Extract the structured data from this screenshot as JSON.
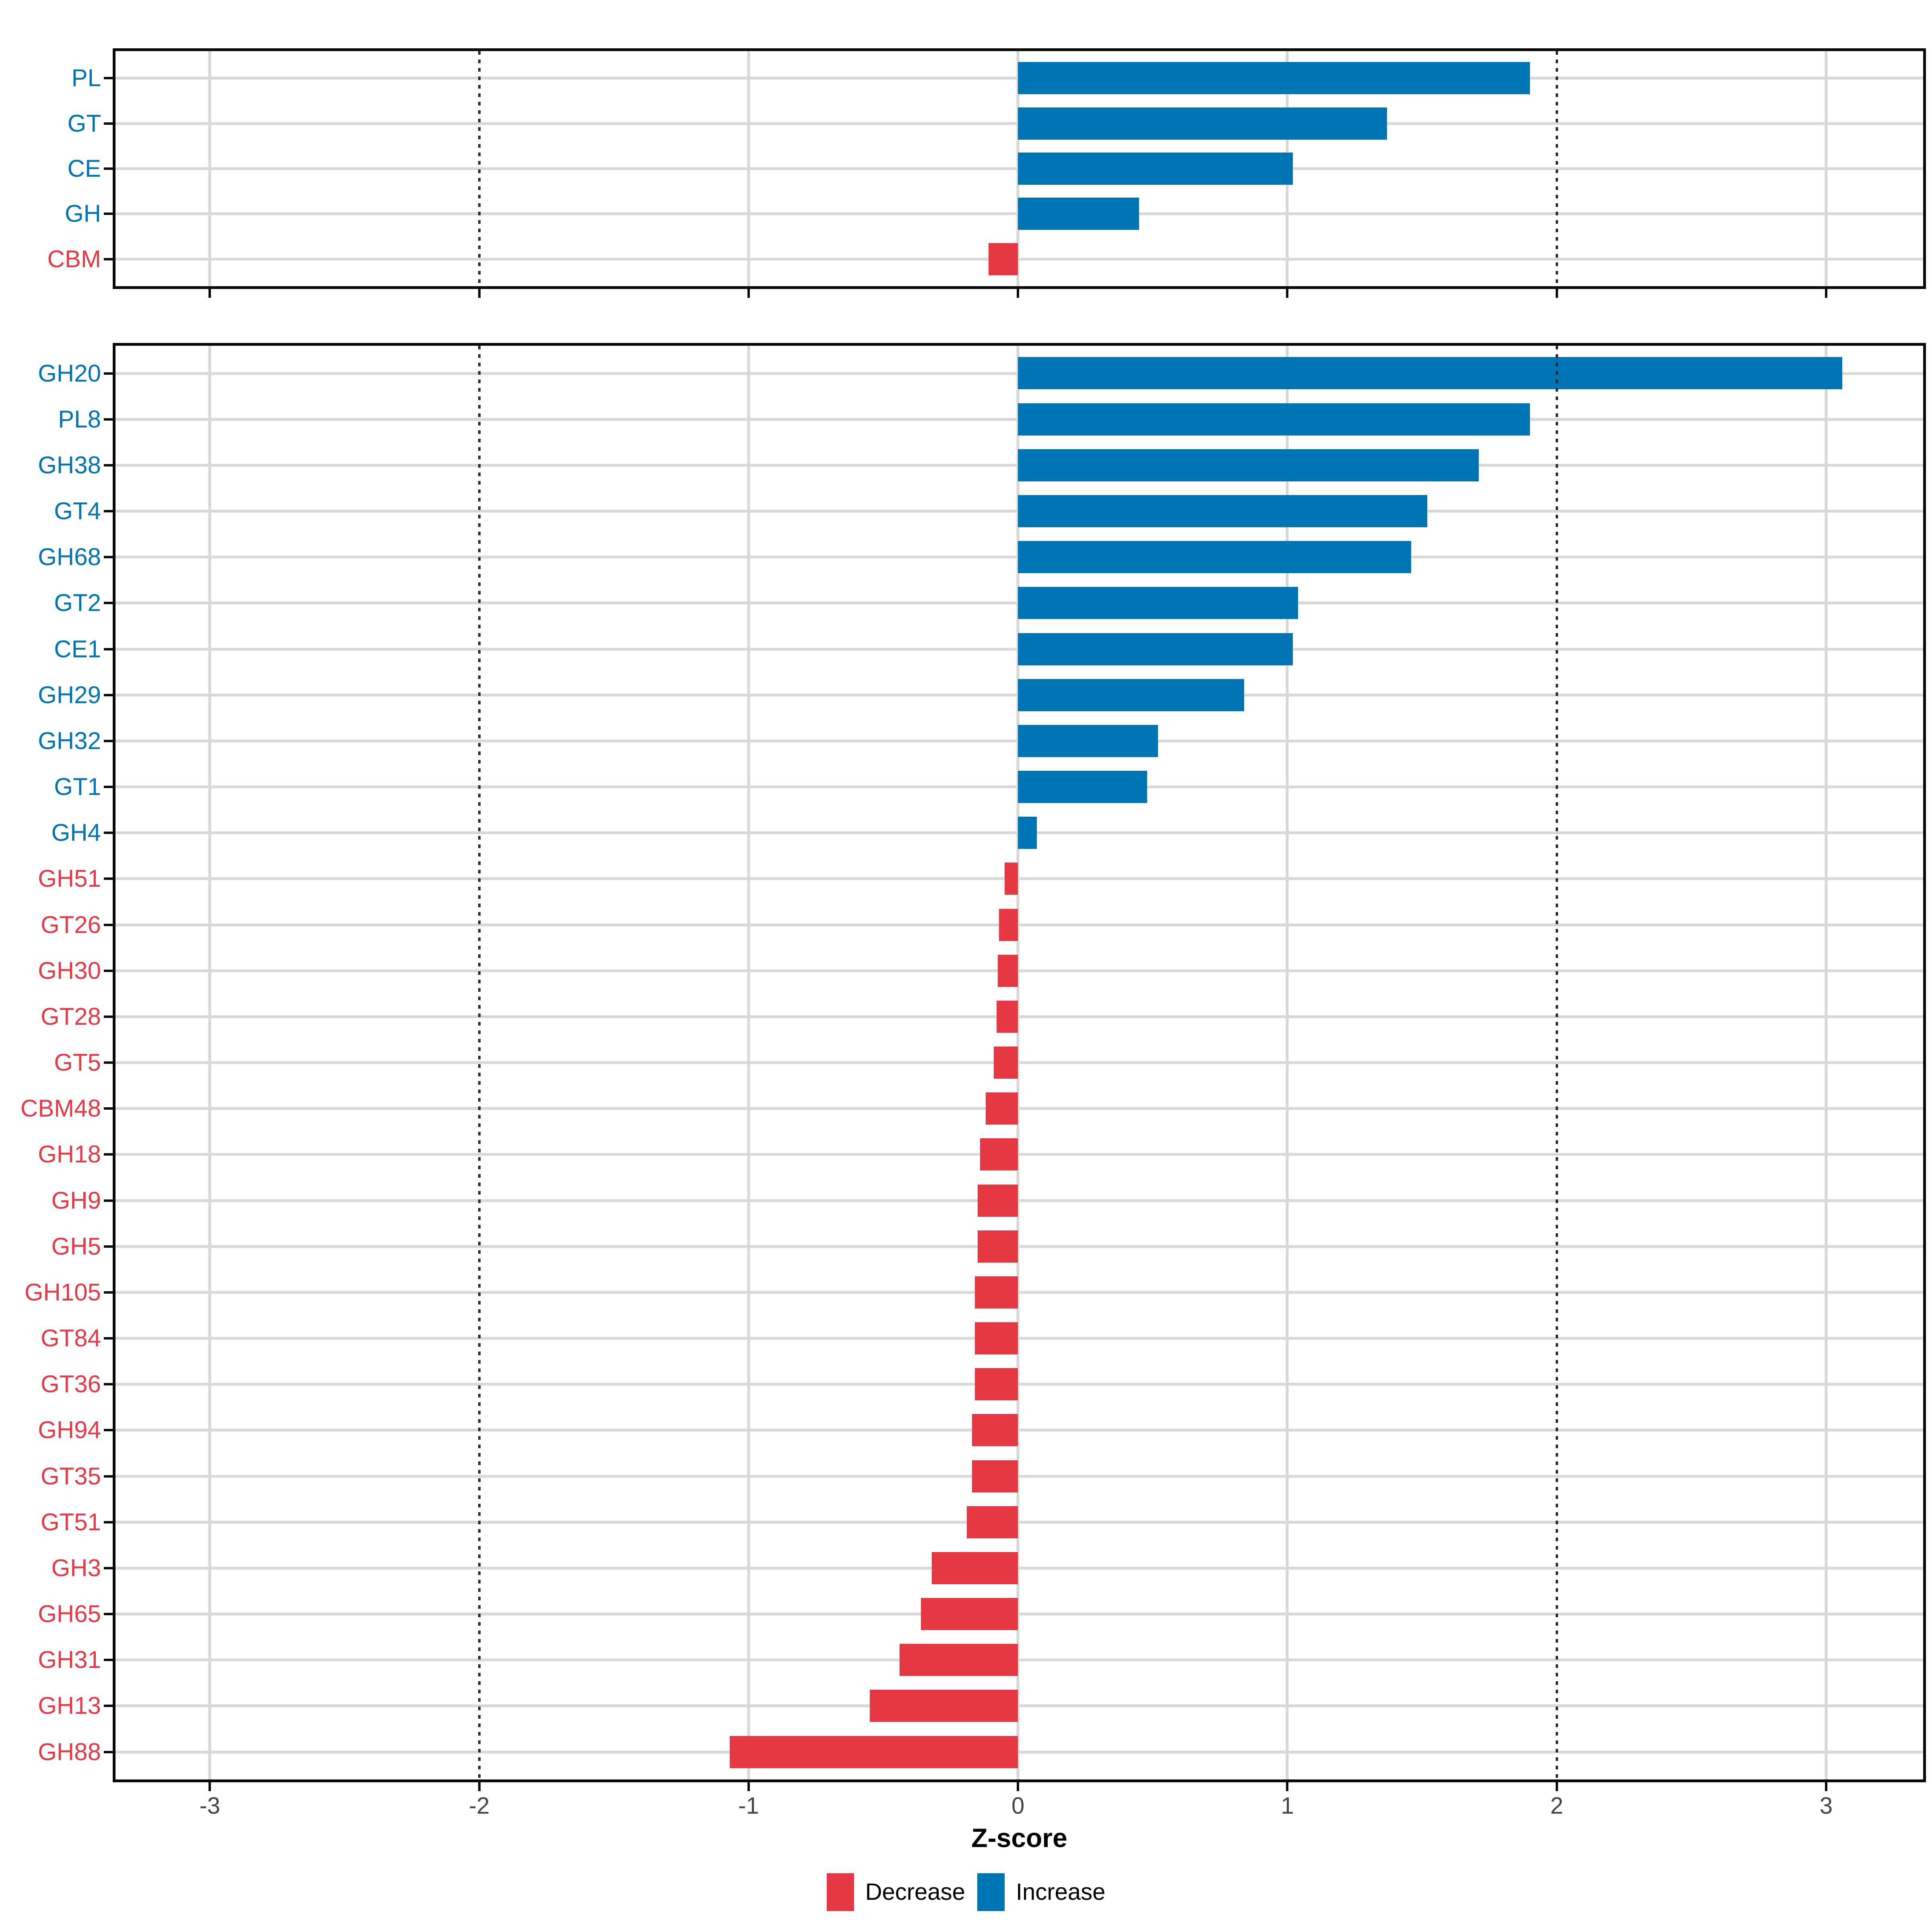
{
  "figure": {
    "xlabel": "Z-score",
    "legend": [
      {
        "label": "Decrease",
        "color": "#E53946"
      },
      {
        "label": "Increase",
        "color": "#0073B2"
      }
    ]
  },
  "axis": {
    "xlim": [
      -3.35,
      3.36
    ],
    "ticks": [
      -3,
      -2,
      -1,
      0,
      1,
      2,
      3
    ],
    "tick_labels": [
      "-3",
      "-2",
      "-1",
      "0",
      "1",
      "2",
      "3"
    ],
    "reference_lines": [
      -2,
      2
    ]
  },
  "colors": {
    "increase": "#0073B2",
    "decrease": "#E53946",
    "grid": "#D8D8D8",
    "reference_line": "#2B2B2B",
    "axis_text": "#454545",
    "border": "#0A0A0A",
    "label_increase": "#0073B2",
    "label_decrease": "#E53946"
  },
  "chart_data": [
    {
      "type": "bar",
      "orientation": "horizontal",
      "panel": "cazyme-classes",
      "xlabel": "Z-score",
      "xlim": [
        -3.35,
        3.36
      ],
      "grid": true,
      "legend_position": "bottom",
      "categories": [
        "PL",
        "GT",
        "CE",
        "GH",
        "CBM"
      ],
      "values": [
        1.9,
        1.37,
        1.02,
        0.45,
        -0.11
      ]
    },
    {
      "type": "bar",
      "orientation": "horizontal",
      "panel": "cazyme-families",
      "xlabel": "Z-score",
      "xlim": [
        -3.35,
        3.36
      ],
      "grid": true,
      "legend_position": "bottom",
      "categories": [
        "GH20",
        "PL8",
        "GH38",
        "GT4",
        "GH68",
        "GT2",
        "CE1",
        "GH29",
        "GH32",
        "GT1",
        "GH4",
        "GH51",
        "GT26",
        "GH30",
        "GT28",
        "GT5",
        "CBM48",
        "GH18",
        "GH9",
        "GH5",
        "GH105",
        "GT84",
        "GT36",
        "GH94",
        "GT35",
        "GT51",
        "GH3",
        "GH65",
        "GH31",
        "GH13",
        "GH88"
      ],
      "values": [
        3.06,
        1.9,
        1.71,
        1.52,
        1.46,
        1.04,
        1.02,
        0.84,
        0.52,
        0.48,
        0.07,
        -0.05,
        -0.07,
        -0.075,
        -0.08,
        -0.09,
        -0.12,
        -0.14,
        -0.15,
        -0.15,
        -0.16,
        -0.16,
        -0.16,
        -0.17,
        -0.17,
        -0.19,
        -0.32,
        -0.36,
        -0.44,
        -0.55,
        -1.07
      ]
    }
  ]
}
